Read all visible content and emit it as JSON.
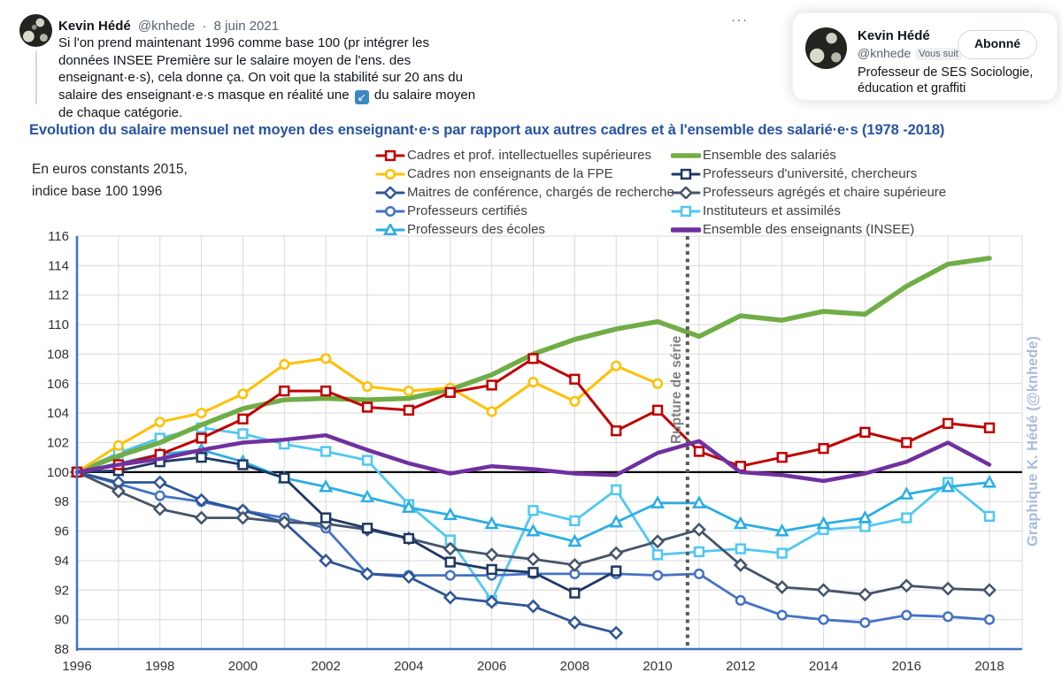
{
  "tweet": {
    "author": "Kevin Hédé",
    "handle": "@knhede",
    "date_sep": "·",
    "date": "8 juin 2021",
    "more_icon": "···",
    "text_before_icon": "Si l'on prend maintenant 1996 comme base 100 (pr intégrer les données INSEE Première sur le salaire moyen de l'ens. des enseignant·e·s), cela donne ça. On voit que la stabilité sur 20 ans du salaire des enseignant·e·s masque en réalité une",
    "icon_glyph": "↙",
    "text_after_icon": "du salaire moyen de chaque catégorie."
  },
  "profile_card": {
    "name": "Kevin Hédé",
    "handle": "@knhede",
    "follows_you_badge": "Vous suit",
    "follow_button": "Abonné",
    "bio": "Professeur de SES Sociologie, éducation et graffiti"
  },
  "chart_data": {
    "type": "line",
    "title": "Evolution du salaire mensuel net moyen des enseignant·e·s par rapport aux autres cadres et à l'ensemble des salarié·e·s (1978 -2018)",
    "note_line1": "En euros constants 2015,",
    "note_line2": "indice base 100 1996",
    "x": [
      1996,
      1997,
      1998,
      1999,
      2000,
      2001,
      2002,
      2003,
      2004,
      2005,
      2006,
      2007,
      2008,
      2009,
      2010,
      2011,
      2012,
      2013,
      2014,
      2015,
      2016,
      2017,
      2018
    ],
    "x_tick_labels": [
      "1996",
      "1998",
      "2000",
      "2002",
      "2004",
      "2006",
      "2008",
      "2010",
      "2012",
      "2014",
      "2016",
      "2018"
    ],
    "ylim": [
      88,
      116
    ],
    "ytick_step": 2,
    "baseline": 100,
    "grid": true,
    "legend_position": "top",
    "axis_color": "#4472c4",
    "grid_color": "#d9d9d9",
    "baseline_color": "#000000",
    "rupture": {
      "label": "Rupture de série",
      "x_year": 2010.72,
      "color": "#595959",
      "label_color": "#7f7f7f"
    },
    "watermark": {
      "label": "Graphique K. Hédé (@knhede)",
      "color": "#a9bddb"
    },
    "series": [
      {
        "name": "Cadres et prof. intellectuelles supérieures",
        "color": "#c00000",
        "marker": "square",
        "width": 3,
        "legend_col": 1,
        "z": 9,
        "values": [
          100,
          100.5,
          101.2,
          102.3,
          103.6,
          105.5,
          105.5,
          104.4,
          104.2,
          105.4,
          105.9,
          107.7,
          106.3,
          102.8,
          104.2,
          101.4,
          100.4,
          101.0,
          101.6,
          102.7,
          102.0,
          103.3,
          103.0
        ]
      },
      {
        "name": "Cadres non enseignants de la FPE",
        "color": "#ffc000",
        "marker": "circle",
        "width": 3,
        "legend_col": 1,
        "z": 8,
        "values": [
          100,
          101.8,
          103.4,
          104.0,
          105.3,
          107.3,
          107.7,
          105.8,
          105.5,
          105.7,
          104.1,
          106.1,
          104.8,
          107.2,
          106.0,
          null,
          null,
          null,
          null,
          null,
          null,
          null,
          null
        ]
      },
      {
        "name": "Maitres de conférence, chargés de recherche",
        "color": "#2f5597",
        "marker": "diamond",
        "width": 2.8,
        "legend_col": 1,
        "z": 4,
        "values": [
          100,
          99.3,
          99.3,
          98.1,
          97.4,
          96.6,
          94.0,
          93.1,
          92.9,
          91.5,
          91.2,
          90.9,
          89.8,
          89.1,
          null,
          null,
          null,
          null,
          null,
          null,
          null,
          null,
          null
        ]
      },
      {
        "name": "Professeurs certifiés",
        "color": "#4472c4",
        "marker": "circle",
        "width": 2.8,
        "legend_col": 1,
        "z": 3,
        "values": [
          100,
          99.2,
          98.4,
          98.0,
          97.4,
          96.9,
          96.2,
          93.1,
          93.0,
          93.0,
          93.0,
          93.1,
          93.1,
          93.1,
          93.0,
          93.1,
          91.3,
          90.3,
          90.0,
          89.8,
          90.3,
          90.2,
          90.0
        ]
      },
      {
        "name": "Professeurs des écoles",
        "color": "#2baee4",
        "marker": "triangle",
        "width": 2.8,
        "legend_col": 1,
        "z": 2,
        "values": [
          100,
          100.6,
          101.2,
          101.5,
          100.7,
          99.6,
          99.0,
          98.3,
          97.6,
          97.1,
          96.5,
          96.0,
          95.3,
          96.6,
          97.9,
          97.9,
          96.5,
          96.0,
          96.5,
          96.9,
          98.5,
          99.0,
          99.3
        ]
      },
      {
        "name": "Ensemble des salariés",
        "color": "#70ad47",
        "marker": "none",
        "width": 5.5,
        "legend_col": 2,
        "z": 7,
        "values": [
          100,
          101.1,
          102.0,
          103.2,
          104.3,
          104.9,
          105.0,
          104.9,
          105.0,
          105.6,
          106.6,
          108.0,
          109.0,
          109.7,
          110.2,
          109.2,
          110.6,
          110.3,
          110.9,
          110.7,
          112.6,
          114.1,
          114.5
        ]
      },
      {
        "name": "Professeurs d'université, chercheurs",
        "color": "#1f3864",
        "marker": "square",
        "width": 2.8,
        "legend_col": 2,
        "z": 6,
        "values": [
          100,
          100.1,
          100.7,
          101.0,
          100.5,
          99.6,
          96.9,
          96.2,
          95.5,
          93.9,
          93.4,
          93.2,
          91.8,
          93.3,
          null,
          null,
          null,
          null,
          null,
          null,
          null,
          null,
          null
        ]
      },
      {
        "name": "Professeurs agrégés et chaire supérieure",
        "color": "#44546a",
        "marker": "diamond",
        "width": 2.8,
        "legend_col": 2,
        "z": 5,
        "values": [
          100,
          98.7,
          97.5,
          96.9,
          96.9,
          96.6,
          96.5,
          96.1,
          95.5,
          94.8,
          94.4,
          94.1,
          93.7,
          94.5,
          95.3,
          96.1,
          93.7,
          92.2,
          92.0,
          91.7,
          92.3,
          92.1,
          92.0
        ]
      },
      {
        "name": "Instituteurs et assimilés",
        "color": "#4fc8f3",
        "marker": "square",
        "width": 2.8,
        "legend_col": 2,
        "z": 1,
        "values": [
          100,
          101.3,
          102.3,
          103.0,
          102.6,
          101.9,
          101.4,
          100.8,
          97.8,
          95.4,
          91.3,
          97.4,
          96.7,
          98.8,
          94.4,
          94.6,
          94.8,
          94.5,
          96.1,
          96.3,
          96.9,
          99.3,
          97.0
        ]
      },
      {
        "name": "Ensemble des enseignants (INSEE)",
        "color": "#7030a0",
        "marker": "none",
        "width": 4.5,
        "legend_col": 2,
        "z": 10,
        "values": [
          100,
          100.5,
          100.9,
          101.5,
          102.0,
          102.2,
          102.5,
          101.5,
          100.6,
          99.9,
          100.4,
          100.2,
          99.9,
          99.8,
          101.3,
          102.1,
          100.0,
          99.8,
          99.4,
          99.9,
          100.7,
          102.0,
          100.5
        ]
      }
    ]
  }
}
